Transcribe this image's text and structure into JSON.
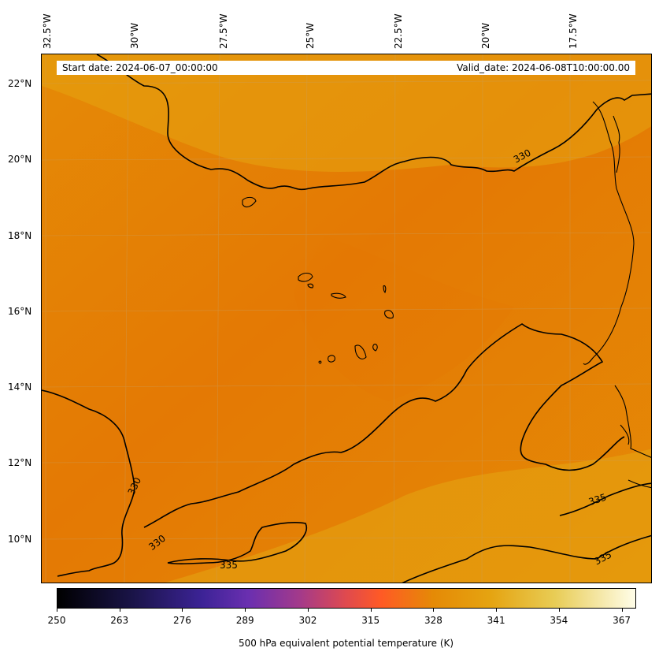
{
  "map": {
    "lon_labels": [
      "32.5°W",
      "30°W",
      "27.5°W",
      "25°W",
      "22.5°W",
      "20°W",
      "17.5°W"
    ],
    "lat_labels": [
      "22°N",
      "20°N",
      "18°N",
      "16°N",
      "14°N",
      "12°N",
      "10°N"
    ],
    "start_date": "Start date: 2024-06-07_00:00:00",
    "valid_date": "Valid_date: 2024-06-08T10:00:00.00",
    "contour_labels": [
      "330",
      "330",
      "330",
      "335",
      "335",
      "335"
    ],
    "field_colors": {
      "base": "#e58a06",
      "warm": "#e5a411",
      "dark": "#e47904"
    }
  },
  "colorbar": {
    "ticks": [
      "250",
      "263",
      "276",
      "289",
      "302",
      "315",
      "328",
      "341",
      "354",
      "367"
    ],
    "title": "500 hPa equivalent potential temperature (K)",
    "min": 250,
    "max": 370,
    "colormap": "CMRmap"
  }
}
